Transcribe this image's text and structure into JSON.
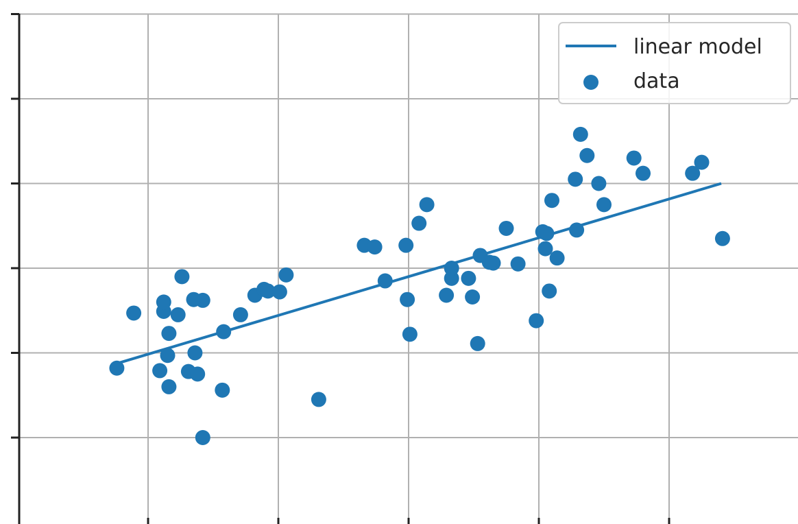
{
  "chart_data": {
    "type": "scatter",
    "title": "",
    "xlabel": "",
    "ylabel": "",
    "grid": true,
    "xlim": [
      -0.4,
      5.6
    ],
    "ylim": [
      -1.0,
      5.0
    ],
    "xticks": [
      0,
      1,
      2,
      3,
      4,
      5
    ],
    "yticks": [
      0,
      1,
      2,
      3,
      4,
      5
    ],
    "legend": {
      "position": "top-right"
    },
    "colors": {
      "series": "#1f77b4"
    },
    "series": [
      {
        "name": "linear model",
        "kind": "line",
        "x": [
          -0.25,
          4.4
        ],
        "y": [
          0.87,
          3.0
        ]
      },
      {
        "name": "data",
        "kind": "scatter",
        "x": [
          -0.24,
          -0.11,
          0.26,
          0.12,
          0.23,
          0.42,
          0.09,
          0.16,
          0.15,
          0.31,
          0.36,
          0.38,
          0.42,
          0.35,
          0.12,
          0.16,
          0.58,
          0.57,
          0.71,
          0.82,
          0.89,
          0.92,
          1.06,
          1.01,
          1.31,
          1.66,
          1.82,
          1.74,
          1.99,
          2.01,
          1.98,
          2.08,
          2.14,
          2.29,
          2.33,
          2.33,
          2.49,
          2.46,
          2.55,
          2.53,
          2.65,
          2.75,
          2.62,
          2.84,
          2.98,
          3.03,
          3.05,
          3.06,
          3.08,
          3.1,
          3.14,
          3.28,
          3.37,
          3.29,
          3.32,
          3.5,
          3.46,
          3.73,
          3.8,
          4.18,
          4.25,
          4.41
        ],
        "y": [
          0.82,
          1.47,
          1.9,
          1.49,
          1.45,
          1.62,
          0.79,
          0.6,
          0.97,
          0.78,
          1.0,
          0.75,
          0.0,
          1.63,
          1.6,
          1.23,
          1.25,
          0.56,
          1.45,
          1.68,
          1.75,
          1.73,
          1.92,
          1.72,
          0.45,
          2.27,
          1.85,
          2.25,
          1.63,
          1.22,
          2.27,
          2.53,
          2.75,
          1.68,
          1.88,
          2.0,
          1.66,
          1.88,
          2.15,
          1.11,
          2.06,
          2.47,
          2.07,
          2.05,
          1.38,
          2.43,
          2.23,
          2.41,
          1.73,
          2.8,
          2.12,
          3.05,
          3.33,
          2.45,
          3.58,
          2.75,
          3.0,
          3.3,
          3.12,
          3.12,
          3.25,
          2.35
        ]
      }
    ]
  }
}
